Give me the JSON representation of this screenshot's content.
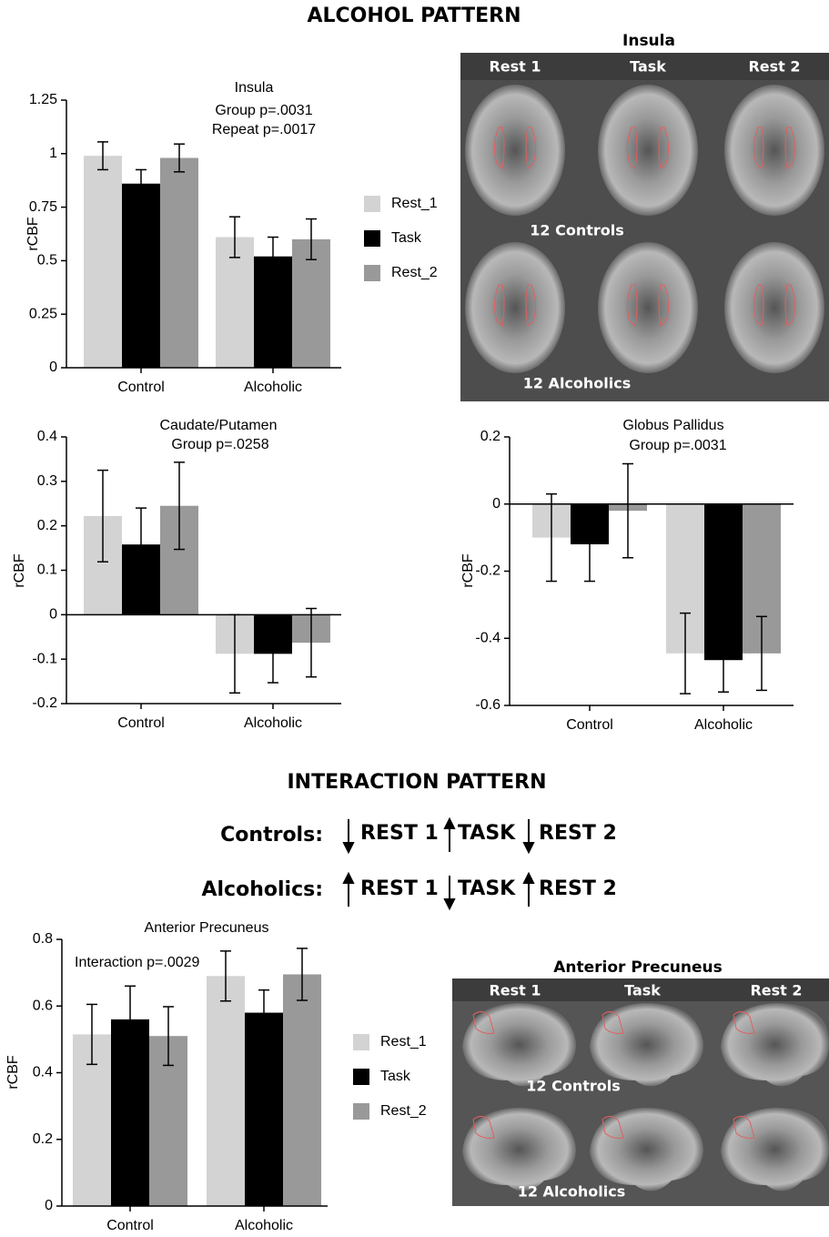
{
  "figure": {
    "title": "ALCOHOL PATTERN",
    "insula_panel": {
      "title": "Insula",
      "columns": [
        "Rest 1",
        "Task",
        "Rest 2"
      ],
      "rows": [
        "12 Controls",
        "12 Alcoholics"
      ]
    },
    "interaction": {
      "title": "INTERACTION PATTERN",
      "rows": [
        {
          "label": "Controls:",
          "items": [
            "REST 1",
            "TASK",
            "REST 2"
          ]
        },
        {
          "label": "Alcoholics:",
          "items": [
            "REST 1",
            "TASK",
            "REST 2"
          ]
        }
      ]
    },
    "precuneus_panel": {
      "title": "Anterior Precuneus",
      "columns": [
        "Rest 1",
        "Task",
        "Rest 2"
      ],
      "rows": [
        "12 Controls",
        "12 Alcoholics"
      ]
    }
  },
  "chart_data": [
    {
      "type": "bar",
      "title": "Insula",
      "annotations": [
        "Group p=.0031",
        "Repeat p=.0017"
      ],
      "y_label": "rCBF",
      "categories": [
        "Control",
        "Alcoholic"
      ],
      "ylim": [
        0,
        1.25
      ],
      "yticks": [
        0,
        0.25,
        0.5,
        0.75,
        1,
        1.25
      ],
      "legend": "right",
      "series": [
        {
          "name": "Rest_1",
          "color": "#d3d3d3",
          "values": [
            0.99,
            0.61
          ],
          "errors": [
            0.065,
            0.095
          ]
        },
        {
          "name": "Task",
          "color": "#000000",
          "values": [
            0.86,
            0.52
          ],
          "errors": [
            0.065,
            0.09
          ]
        },
        {
          "name": "Rest_2",
          "color": "#999999",
          "values": [
            0.98,
            0.6
          ],
          "errors": [
            0.065,
            0.095
          ]
        }
      ]
    },
    {
      "type": "bar",
      "title": "Caudate/Putamen",
      "annotations": [
        "Group p=.0258"
      ],
      "y_label": "rCBF",
      "categories": [
        "Control",
        "Alcoholic"
      ],
      "ylim": [
        -0.2,
        0.4
      ],
      "yticks": [
        -0.2,
        -0.1,
        0,
        0.1,
        0.2,
        0.3,
        0.4
      ],
      "series": [
        {
          "name": "Rest_1",
          "color": "#d3d3d3",
          "values": [
            0.222,
            -0.088
          ],
          "errors": [
            0.103,
            0.088
          ]
        },
        {
          "name": "Task",
          "color": "#000000",
          "values": [
            0.158,
            -0.088
          ],
          "errors": [
            0.082,
            0.065
          ]
        },
        {
          "name": "Rest_2",
          "color": "#999999",
          "values": [
            0.245,
            -0.063
          ],
          "errors": [
            0.098,
            0.077
          ]
        }
      ]
    },
    {
      "type": "bar",
      "title": "Globus  Pallidus",
      "annotations": [
        "Group p=.0031"
      ],
      "y_label": "rCBF",
      "categories": [
        "Control",
        "Alcoholic"
      ],
      "ylim": [
        -0.6,
        0.2
      ],
      "yticks": [
        -0.6,
        -0.4,
        -0.2,
        0,
        0.2
      ],
      "series": [
        {
          "name": "Rest_1",
          "color": "#d3d3d3",
          "values": [
            -0.1,
            -0.445
          ],
          "errors": [
            0.13,
            0.12
          ]
        },
        {
          "name": "Task",
          "color": "#000000",
          "values": [
            -0.12,
            -0.465
          ],
          "errors": [
            0.11,
            0.095
          ]
        },
        {
          "name": "Rest_2",
          "color": "#999999",
          "values": [
            -0.02,
            -0.445
          ],
          "errors": [
            0.14,
            0.11
          ]
        }
      ]
    },
    {
      "type": "bar",
      "title": "Anterior Precuneus",
      "annotations": [
        "Interaction p=.0029"
      ],
      "y_label": "rCBF",
      "categories": [
        "Control",
        "Alcoholic"
      ],
      "ylim": [
        0,
        0.8
      ],
      "yticks": [
        0,
        0.2,
        0.4,
        0.6,
        0.8
      ],
      "legend": "right",
      "series": [
        {
          "name": "Rest_1",
          "color": "#d3d3d3",
          "values": [
            0.515,
            0.69
          ],
          "errors": [
            0.09,
            0.075
          ]
        },
        {
          "name": "Task",
          "color": "#000000",
          "values": [
            0.56,
            0.58
          ],
          "errors": [
            0.1,
            0.068
          ]
        },
        {
          "name": "Rest_2",
          "color": "#999999",
          "values": [
            0.51,
            0.695
          ],
          "errors": [
            0.088,
            0.078
          ]
        }
      ]
    }
  ]
}
